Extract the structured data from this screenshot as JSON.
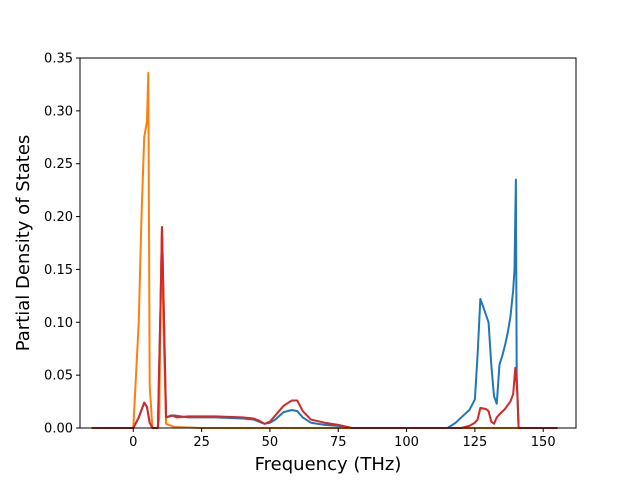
{
  "chart_data": {
    "type": "line",
    "title": "",
    "xlabel": "Frequency (THz)",
    "ylabel": "Partial Density of States",
    "xlim": [
      -19.5,
      162
    ],
    "ylim": [
      0,
      0.35
    ],
    "xticks": [
      0,
      25,
      50,
      75,
      100,
      125,
      150
    ],
    "xtick_labels": [
      "0",
      "25",
      "50",
      "75",
      "100",
      "125",
      "150"
    ],
    "yticks": [
      0,
      0.05,
      0.1,
      0.15,
      0.2,
      0.25,
      0.3,
      0.35
    ],
    "ytick_labels": [
      "0.00",
      "0.05",
      "0.10",
      "0.15",
      "0.20",
      "0.25",
      "0.30",
      "0.35"
    ],
    "grid": false,
    "legend": "none",
    "series": [
      {
        "color": "#1f77b4",
        "x": [
          -15,
          0,
          2,
          4,
          5,
          6,
          7,
          9,
          10,
          10.5,
          11,
          12,
          15,
          20,
          30,
          40,
          44,
          46,
          48,
          50,
          52,
          55,
          58,
          60,
          62,
          65,
          70,
          75,
          80,
          115,
          118,
          120,
          123,
          125,
          126,
          127,
          128,
          130,
          131,
          132,
          133,
          134,
          135,
          136,
          137,
          138,
          139,
          139.5,
          140,
          140.3,
          141,
          155
        ],
        "y": [
          0,
          0,
          0.01,
          0.024,
          0.02,
          0.005,
          0,
          0,
          0.12,
          0.19,
          0.13,
          0.01,
          0.012,
          0.01,
          0.01,
          0.009,
          0.008,
          0.006,
          0.004,
          0.005,
          0.008,
          0.015,
          0.017,
          0.016,
          0.01,
          0.005,
          0.003,
          0.002,
          0,
          0,
          0.005,
          0.01,
          0.017,
          0.027,
          0.07,
          0.122,
          0.115,
          0.1,
          0.06,
          0.03,
          0.023,
          0.06,
          0.068,
          0.078,
          0.09,
          0.105,
          0.13,
          0.15,
          0.235,
          0.05,
          0,
          0
        ]
      },
      {
        "color": "#ff7f0e",
        "x": [
          -15,
          0,
          2,
          3,
          4,
          5,
          5.5,
          6,
          7,
          8,
          9,
          9.5,
          10,
          10.5,
          11,
          12,
          15,
          25,
          35,
          155
        ],
        "y": [
          0,
          0,
          0.1,
          0.2,
          0.275,
          0.29,
          0.336,
          0.04,
          0,
          0,
          0,
          0.01,
          0.12,
          0.19,
          0.1,
          0.004,
          0.001,
          0,
          0,
          0
        ]
      },
      {
        "color": "#d62728",
        "x": [
          -15,
          0,
          2,
          4,
          5,
          6,
          7,
          9,
          10,
          10.5,
          11,
          12,
          14,
          16,
          20,
          30,
          40,
          44,
          46,
          48,
          50,
          52,
          55,
          58,
          60,
          62,
          65,
          70,
          75,
          80,
          115,
          120,
          123,
          125,
          126,
          127,
          129,
          130,
          131,
          132,
          133,
          134,
          136,
          138,
          139,
          139.8,
          140.5,
          141,
          155
        ],
        "y": [
          0,
          0,
          0.01,
          0.024,
          0.02,
          0.005,
          0,
          0,
          0.12,
          0.19,
          0.13,
          0.01,
          0.012,
          0.01,
          0.011,
          0.011,
          0.01,
          0.009,
          0.007,
          0.004,
          0.006,
          0.012,
          0.021,
          0.026,
          0.026,
          0.016,
          0.008,
          0.005,
          0.003,
          0,
          0,
          0,
          0.002,
          0.005,
          0.008,
          0.019,
          0.018,
          0.016,
          0.006,
          0.004,
          0.01,
          0.013,
          0.018,
          0.025,
          0.032,
          0.057,
          0.035,
          0,
          0
        ]
      }
    ]
  }
}
